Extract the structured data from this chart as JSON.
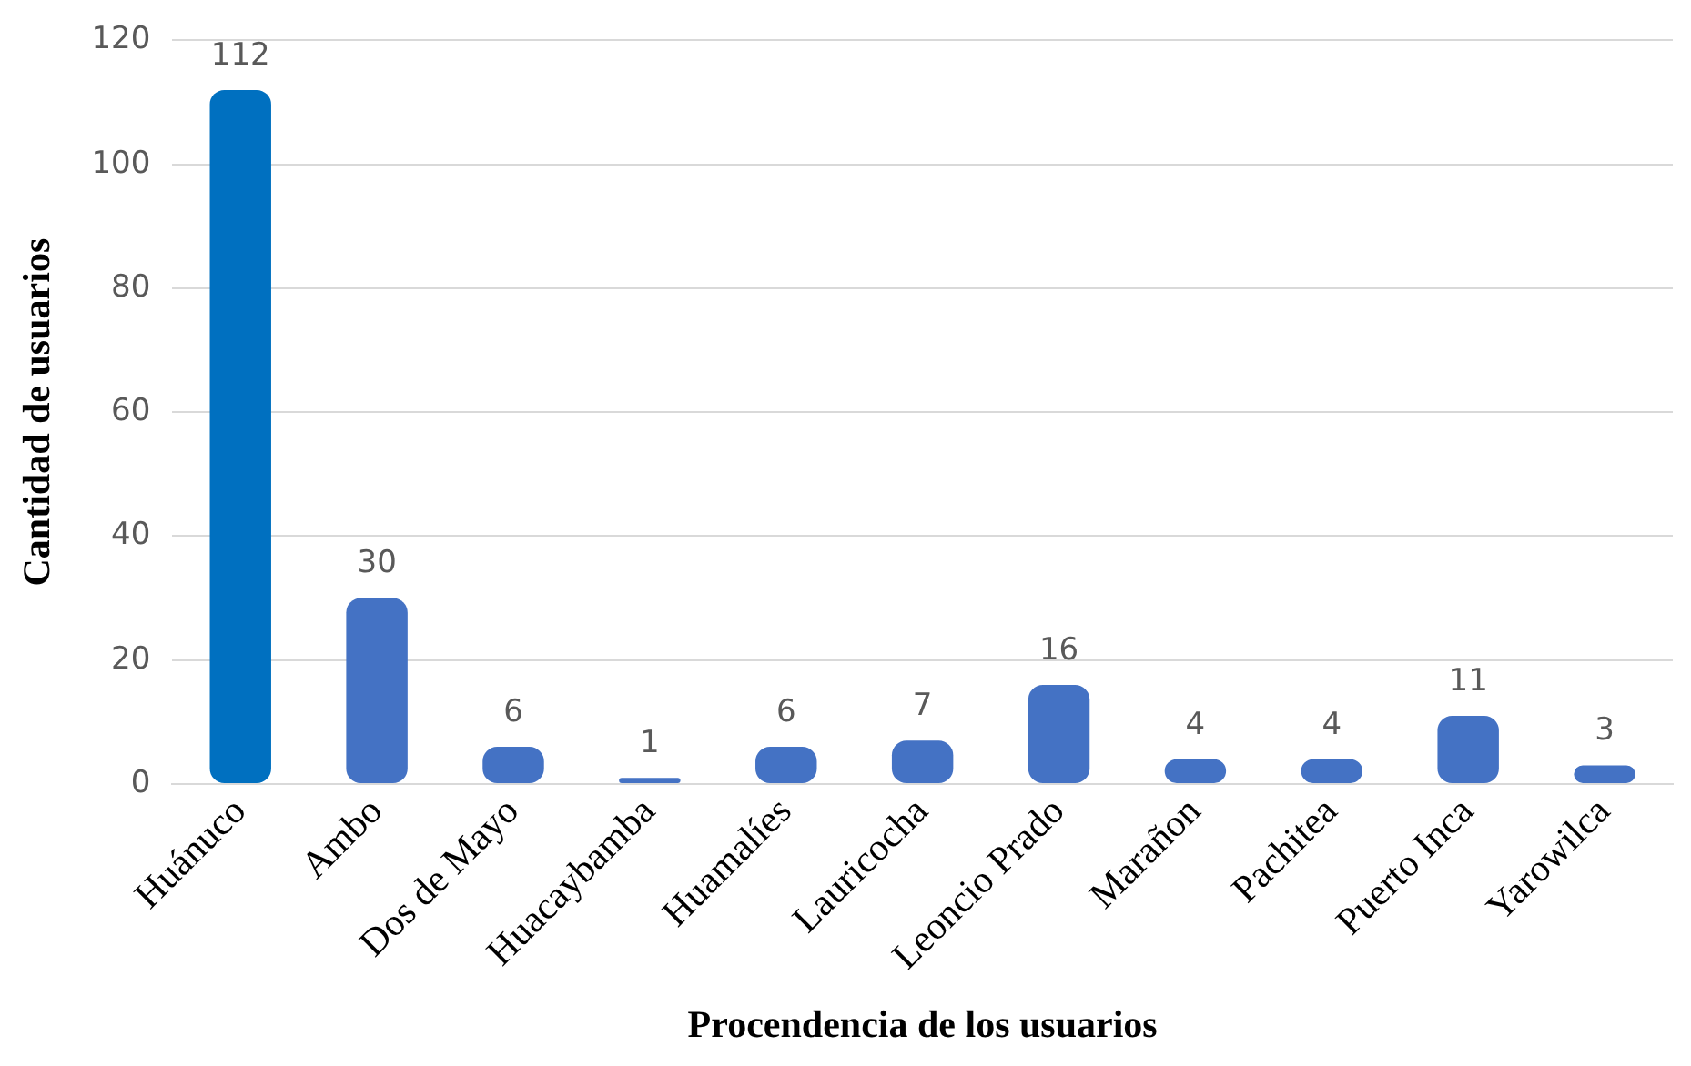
{
  "chart_data": {
    "type": "bar",
    "xlabel": "Procendencia de los usuarios",
    "ylabel": "Cantidad de usuarios",
    "categories": [
      "Huánuco",
      "Ambo",
      "Dos de Mayo",
      "Huacaybamba",
      "Huamalíes",
      "Lauricocha",
      "Leoncio Prado",
      "Marañon",
      "Pachitea",
      "Puerto Inca",
      "Yarowilca"
    ],
    "values": [
      112,
      30,
      6,
      1,
      6,
      7,
      16,
      4,
      4,
      11,
      3
    ],
    "colors": [
      "#0070c0",
      "#4472c4",
      "#4472c4",
      "#4472c4",
      "#4472c4",
      "#4472c4",
      "#4472c4",
      "#4472c4",
      "#4472c4",
      "#4472c4",
      "#4472c4"
    ],
    "ylim": [
      0,
      120
    ],
    "yticks": [
      0,
      20,
      40,
      60,
      80,
      100,
      120
    ],
    "grid": "y",
    "data_labels": true
  }
}
